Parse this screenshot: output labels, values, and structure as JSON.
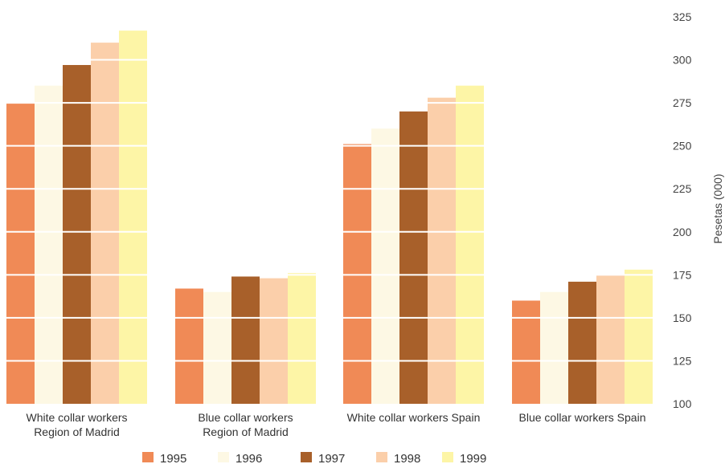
{
  "chart_data": {
    "type": "bar",
    "categories": [
      [
        "White collar workers",
        "Region of Madrid"
      ],
      [
        "Blue collar workers",
        "Region of Madrid"
      ],
      [
        "White collar workers Spain"
      ],
      [
        "Blue collar workers Spain"
      ]
    ],
    "series": [
      {
        "name": "1995",
        "color": "#f08a56",
        "values": [
          275,
          167,
          251,
          160
        ]
      },
      {
        "name": "1996",
        "color": "#fdf8e4",
        "values": [
          285,
          165,
          260,
          165
        ]
      },
      {
        "name": "1997",
        "color": "#a8602a",
        "values": [
          297,
          174,
          270,
          171
        ]
      },
      {
        "name": "1998",
        "color": "#fbcfaa",
        "values": [
          310,
          173,
          278,
          175
        ]
      },
      {
        "name": "1999",
        "color": "#fdf5a6",
        "values": [
          317,
          176,
          285,
          178
        ]
      }
    ],
    "ylabel": "Pesetas (000)",
    "ylim": [
      100,
      325
    ],
    "yticks": [
      100,
      125,
      150,
      175,
      200,
      225,
      250,
      275,
      300,
      325
    ],
    "y_axis_side": "right",
    "grid": true,
    "legend_position": "bottom"
  }
}
